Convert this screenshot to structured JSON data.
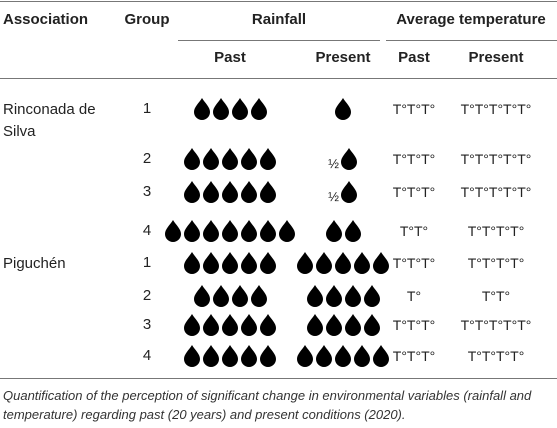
{
  "table": {
    "headers": {
      "association": "Association",
      "group": "Group",
      "rainfall": "Rainfall",
      "temperature": "Average temperature"
    },
    "subheaders": {
      "rainfall_past": "Past",
      "rainfall_present": "Present",
      "temperature_past": "Past",
      "temperature_present": "Present"
    },
    "associations": [
      {
        "name": "Rinconada de Silva",
        "rows": [
          {
            "group": 1,
            "rainfall_past": 4,
            "rainfall_present": 1,
            "temperature_past": "T°T°T°",
            "temperature_present": "T°T°T°T°T°"
          },
          {
            "group": 2,
            "rainfall_past": 5,
            "rainfall_present": 1,
            "rainfall_present_prefix": "½",
            "temperature_past": "T°T°T°",
            "temperature_present": "T°T°T°T°T°"
          },
          {
            "group": 3,
            "rainfall_past": 5,
            "rainfall_present": 1,
            "rainfall_present_prefix": "½",
            "temperature_past": "T°T°T°",
            "temperature_present": "T°T°T°T°T°"
          },
          {
            "group": 4,
            "rainfall_past": 7,
            "rainfall_present": 2,
            "temperature_past": "T°T°",
            "temperature_present": "T°T°T°T°"
          }
        ]
      },
      {
        "name": "Piguchén",
        "rows": [
          {
            "group": 1,
            "rainfall_past": 5,
            "rainfall_present": 5,
            "temperature_past": "T°T°T°",
            "temperature_present": "T°T°T°T°"
          },
          {
            "group": 2,
            "rainfall_past": 4,
            "rainfall_present": 4,
            "temperature_past": "T°",
            "temperature_present": "T°T°"
          },
          {
            "group": 3,
            "rainfall_past": 5,
            "rainfall_present": 4,
            "temperature_past": "T°T°T°",
            "temperature_present": "T°T°T°T°T°"
          },
          {
            "group": 4,
            "rainfall_past": 5,
            "rainfall_present": 5,
            "temperature_past": "T°T°T°",
            "temperature_present": "T°T°T°T°"
          }
        ]
      }
    ]
  },
  "caption": "Quantification of the perception of significant change in environmental variables (rainfall and temperature) regarding past (20 years) and present conditions (2020)."
}
